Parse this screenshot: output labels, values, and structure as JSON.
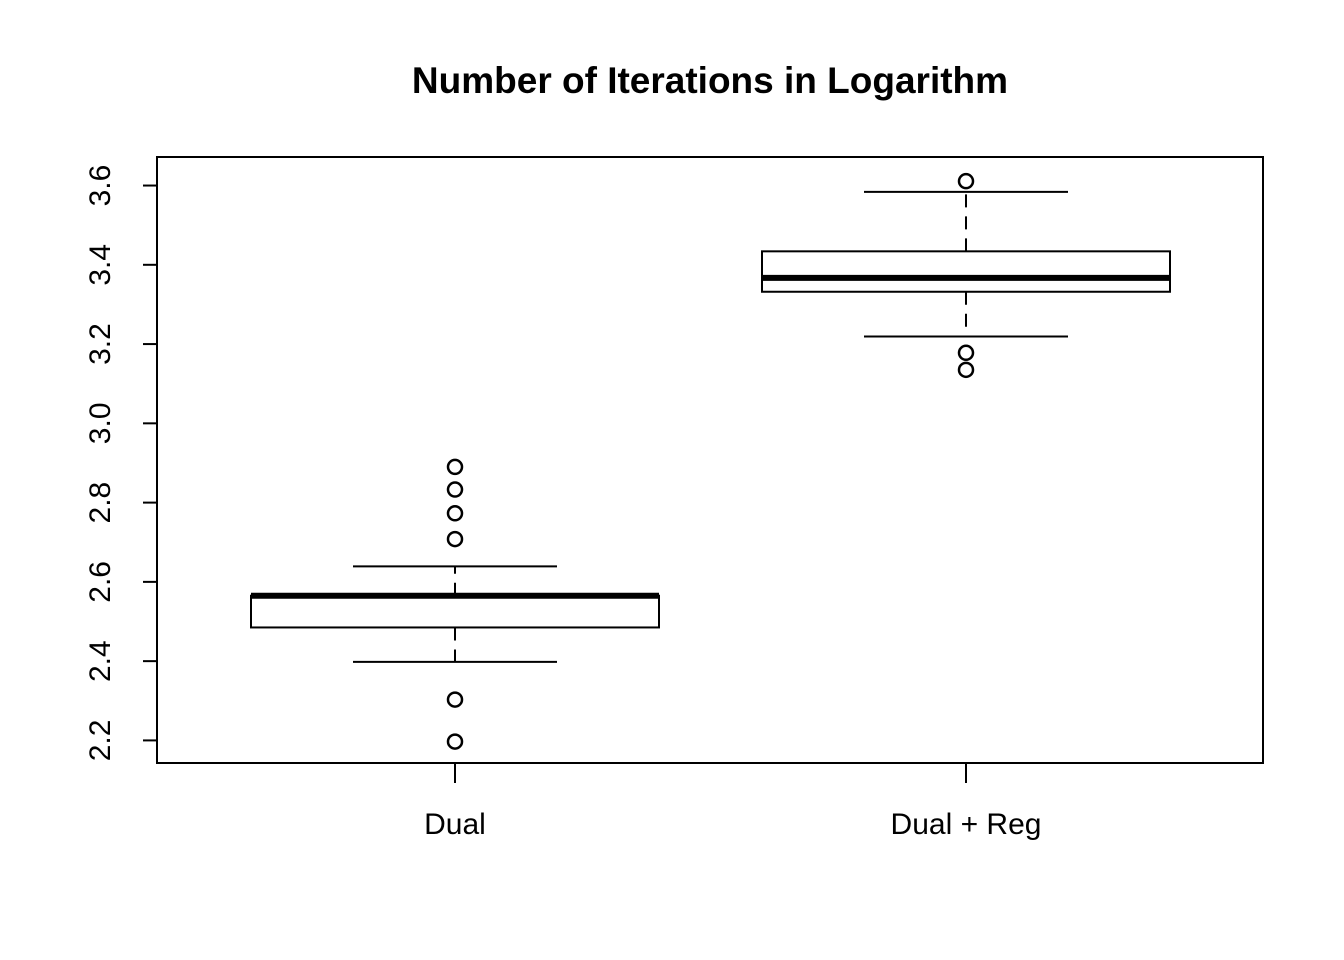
{
  "chart_data": {
    "type": "boxplot",
    "title": "Number of Iterations in Logarithm",
    "xlabel": "",
    "ylabel": "",
    "ylim": [
      2.143,
      3.672
    ],
    "y_ticks": [
      2.2,
      2.4,
      2.6,
      2.8,
      3.0,
      3.2,
      3.4,
      3.6
    ],
    "y_tick_labels": [
      "2.2",
      "2.4",
      "2.6",
      "2.8",
      "3.0",
      "3.2",
      "3.4",
      "3.6"
    ],
    "grid": false,
    "categories": [
      "Dual",
      "Dual + Reg"
    ],
    "boxes": [
      {
        "category": "Dual",
        "whisker_low": 2.398,
        "q1": 2.485,
        "median": 2.565,
        "q3": 2.565,
        "whisker_high": 2.639,
        "outliers": [
          2.197,
          2.303,
          2.708,
          2.773,
          2.833,
          2.89
        ]
      },
      {
        "category": "Dual + Reg",
        "whisker_low": 3.219,
        "q1": 3.332,
        "median": 3.367,
        "q3": 3.434,
        "whisker_high": 3.584,
        "outliers": [
          3.135,
          3.178,
          3.611
        ]
      }
    ]
  }
}
